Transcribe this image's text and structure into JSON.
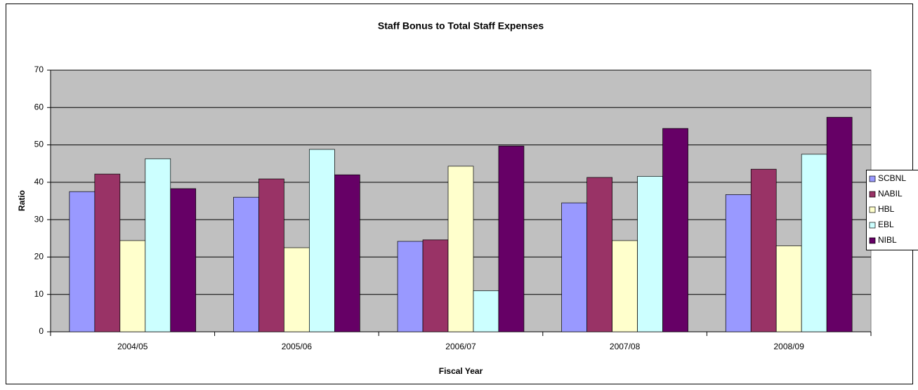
{
  "chart_data": {
    "type": "bar",
    "title": "Staff Bonus to Total Staff Expenses",
    "x_label": "Fiscal Year",
    "y_label": "Ratio",
    "categories": [
      "2004/05",
      "2005/06",
      "2006/07",
      "2007/08",
      "2008/09"
    ],
    "series": [
      {
        "name": "SCBNL",
        "color": "#9999ff",
        "values": [
          37.5,
          36,
          24.2,
          34.5,
          36.7
        ]
      },
      {
        "name": "NABIL",
        "color": "#993366",
        "values": [
          42.2,
          40.9,
          24.6,
          41.3,
          43.5
        ]
      },
      {
        "name": "HBL",
        "color": "#ffffcc",
        "values": [
          24.4,
          22.5,
          44.3,
          24.4,
          23
        ]
      },
      {
        "name": "EBL",
        "color": "#ccffff",
        "values": [
          46.3,
          48.8,
          11,
          41.6,
          47.5
        ]
      },
      {
        "name": "NIBL",
        "color": "#660066",
        "values": [
          38.3,
          42,
          49.7,
          54.4,
          57.4
        ]
      }
    ],
    "ylim": [
      0,
      70
    ],
    "yticks": [
      0,
      10,
      20,
      30,
      40,
      50,
      60,
      70
    ],
    "grid": true,
    "plot_background": "#c0c0c0",
    "legend": "right"
  }
}
